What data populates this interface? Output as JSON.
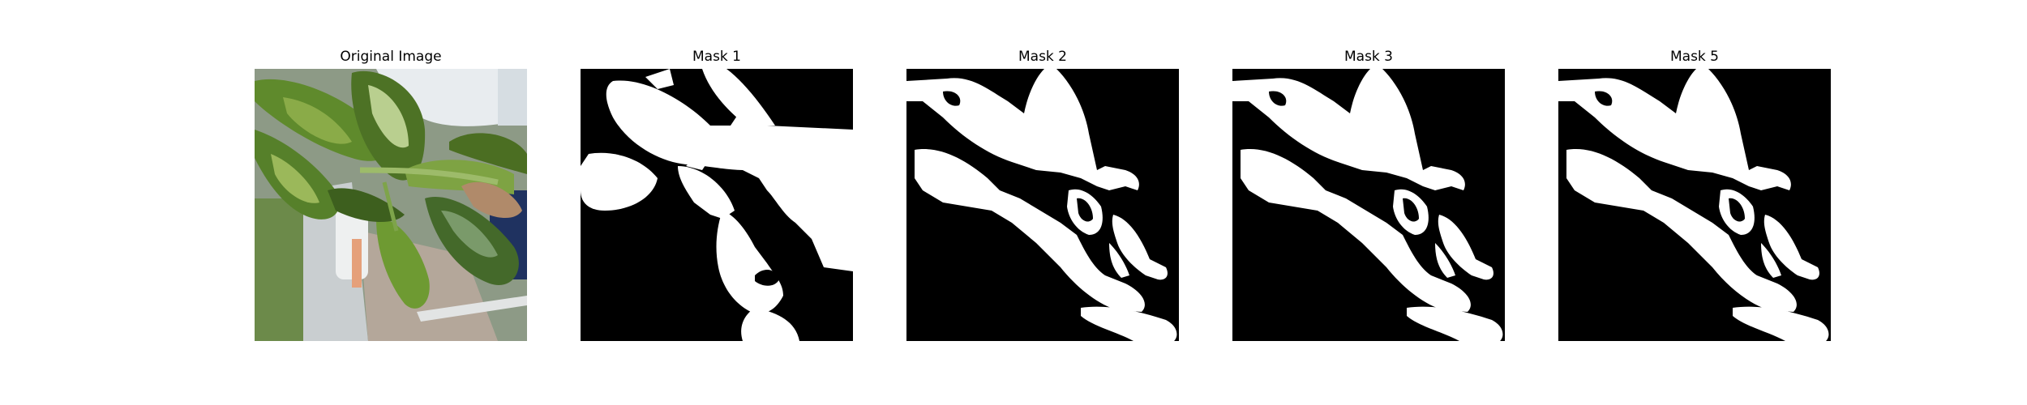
{
  "panels": [
    {
      "title": "Original Image"
    },
    {
      "title": "Mask 1"
    },
    {
      "title": "Mask 2"
    },
    {
      "title": "Mask 3"
    },
    {
      "title": "Mask 5"
    }
  ],
  "colors": {
    "background": "#ffffff",
    "mask_foreground": "#ffffff",
    "mask_background": "#000000",
    "leaf_green": "#5c7d2a",
    "leaf_dark": "#34501a",
    "leaf_light": "#a9c46a"
  }
}
